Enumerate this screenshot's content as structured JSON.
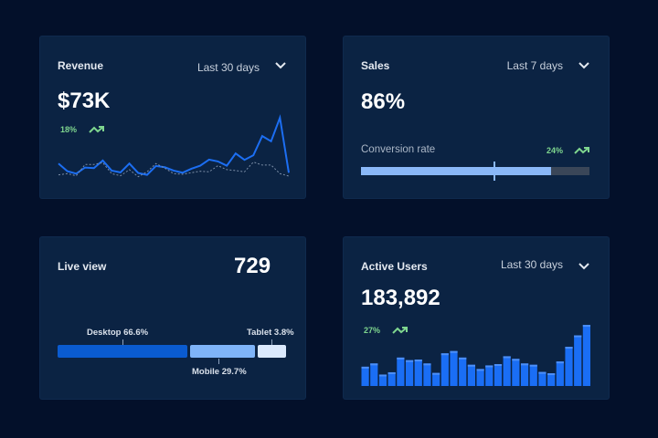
{
  "colors": {
    "background": "#03102a",
    "card": "#0b2343",
    "accent": "#1c6ef2",
    "positive": "#7fd68f",
    "bar_light": "#8ab8f8",
    "bar_track": "#3a4658"
  },
  "revenue": {
    "title": "Revenue",
    "range": "Last 30 days",
    "value": "$73K",
    "delta": "18%",
    "trend_icon": "trending-up-icon",
    "chart_data": {
      "type": "line",
      "series": [
        {
          "values": [
            65,
            40,
            32,
            52,
            50,
            75,
            42,
            36,
            65,
            34,
            28,
            57,
            53,
            42,
            35,
            48,
            58,
            78,
            72,
            58,
            98,
            77,
            92,
            155,
            138,
            215,
            35
          ],
          "style": "solid"
        },
        {
          "values": [
            28,
            32,
            25,
            62,
            62,
            68,
            32,
            25,
            45,
            22,
            38,
            65,
            50,
            32,
            30,
            35,
            40,
            38,
            58,
            45,
            42,
            38,
            70,
            60,
            60,
            32,
            24
          ],
          "style": "dotted"
        }
      ]
    }
  },
  "sales": {
    "title": "Sales",
    "range": "Last 7 days",
    "value": "86%",
    "metric_label": "Conversion rate",
    "delta": "24%",
    "trend_icon": "trending-up-icon",
    "progress": 0.83,
    "target_marker": 0.58
  },
  "live": {
    "title": "Live view",
    "value": "729",
    "segments": [
      {
        "label": "Desktop 66.6%",
        "value": 66.6,
        "color": "#0a5bd0"
      },
      {
        "label": "Mobile 29.7%",
        "value": 29.7,
        "color": "#7fb4f8"
      },
      {
        "label": "Tablet 3.8%",
        "value": 3.8,
        "color": "#dbe9fd"
      }
    ]
  },
  "users": {
    "title": "Active Users",
    "range": "Last 30 days",
    "value": "183,892",
    "delta": "27%",
    "trend_icon": "trending-up-icon",
    "chart_data": {
      "type": "bar",
      "values": [
        59,
        69,
        35,
        42,
        87,
        79,
        81,
        69,
        40,
        100,
        107,
        87,
        65,
        52,
        63,
        67,
        91,
        83,
        69,
        65,
        43,
        39,
        75,
        120,
        155,
        187
      ]
    }
  }
}
